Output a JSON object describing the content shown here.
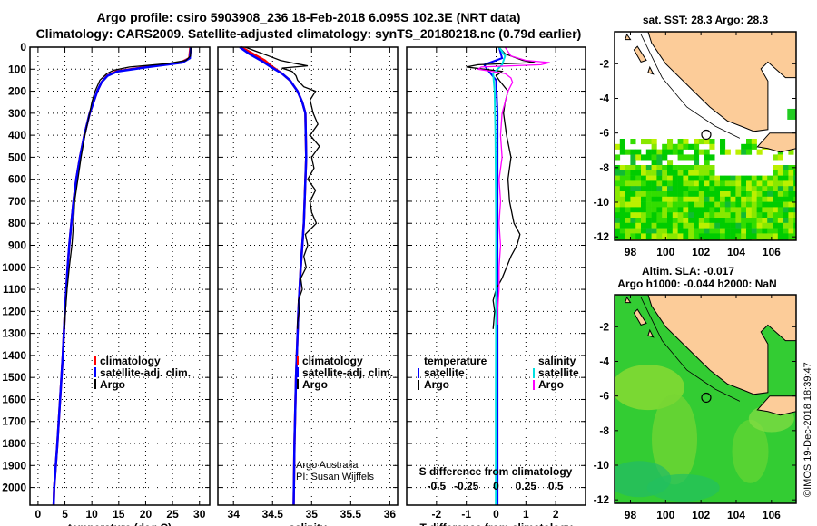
{
  "title_line1": "Argo profile: csiro 5903908_236 18-Feb-2018 6.095S 102.3E (NRT data)",
  "title_line2": "Climatology: CARS2009. Satellite-adjusted climatology: synTS_20180218.nc (0.79d earlier)",
  "credit": "©IMOS 19-Dec-2018 18:39:47",
  "colors": {
    "climatology": "#ff0000",
    "satellite": "#0000ff",
    "argo": "#000000",
    "sal_satellite": "#00e0e0",
    "sal_argo": "#ff00ff"
  },
  "chart_data": [
    {
      "type": "line",
      "id": "temperature",
      "xlabel": "temperature (deg C)",
      "ylabel": "depth",
      "xlim": [
        -1.5,
        31.9
      ],
      "ylim": [
        0,
        2080
      ],
      "xticks": [
        "0",
        "5",
        "10",
        "15",
        "20",
        "25",
        "30"
      ],
      "xtick_values": [
        0,
        5,
        10,
        15,
        20,
        25,
        30
      ],
      "yticks": [
        "0",
        "100",
        "200",
        "300",
        "400",
        "500",
        "600",
        "700",
        "800",
        "900",
        "1000",
        "1100",
        "1200",
        "1300",
        "1400",
        "1500",
        "1600",
        "1700",
        "1800",
        "1900",
        "2000"
      ],
      "ytick_values": [
        0,
        100,
        200,
        300,
        400,
        500,
        600,
        700,
        800,
        900,
        1000,
        1100,
        1200,
        1300,
        1400,
        1500,
        1600,
        1700,
        1800,
        1900,
        2000
      ],
      "legend": [
        "climatology",
        "satellite-adj. clim.",
        "Argo"
      ],
      "series": [
        {
          "name": "climatology",
          "depth": [
            0,
            50,
            70,
            90,
            110,
            130,
            160,
            200,
            250,
            300,
            400,
            500,
            600,
            700,
            800,
            900,
            1000,
            1200,
            1400,
            1600,
            1800,
            2000,
            2080
          ],
          "values": [
            28.3,
            28.1,
            26.5,
            20,
            14.5,
            12.8,
            11.8,
            11,
            10.3,
            9.6,
            8.6,
            7.8,
            7.1,
            6.6,
            6.2,
            5.8,
            5.5,
            5,
            4.6,
            4.1,
            3.6,
            3.0,
            2.9
          ]
        },
        {
          "name": "satellite-adj. clim.",
          "depth": [
            0,
            50,
            70,
            90,
            110,
            130,
            160,
            200,
            250,
            300,
            400,
            500,
            600,
            700,
            800,
            900,
            1000,
            1200,
            1400,
            1600,
            1800,
            2000,
            2080
          ],
          "values": [
            28.4,
            28.2,
            26.8,
            20.5,
            14.8,
            12.9,
            11.8,
            11,
            10.3,
            9.6,
            8.6,
            7.8,
            7.1,
            6.6,
            6.2,
            5.8,
            5.5,
            5,
            4.6,
            4.1,
            3.6,
            3.0,
            2.9
          ]
        },
        {
          "name": "Argo",
          "depth": [
            0,
            40,
            60,
            75,
            90,
            105,
            120,
            150,
            200,
            250,
            300,
            400,
            500,
            600,
            700,
            800,
            900,
            1000,
            1100,
            1200,
            1280
          ],
          "values": [
            28.4,
            28.3,
            27.5,
            24,
            17,
            14,
            12.8,
            11.5,
            10.6,
            10,
            9.6,
            8.7,
            8.0,
            7.4,
            6.8,
            6.6,
            6.3,
            5.8,
            5.4,
            5.1,
            4.9
          ]
        }
      ]
    },
    {
      "type": "line",
      "id": "salinity",
      "xlabel": "salinity",
      "xlim": [
        33.8,
        36.1
      ],
      "ylim": [
        0,
        2080
      ],
      "xticks": [
        "34",
        "34.5",
        "35",
        "35.5",
        "36"
      ],
      "xtick_values": [
        34,
        34.5,
        35,
        35.5,
        36
      ],
      "legend": [
        "climatology",
        "satellite-adj. clim.",
        "Argo"
      ],
      "annotation": [
        "Argo Australia",
        "PI: Susan Wijffels"
      ],
      "series": [
        {
          "name": "climatology",
          "depth": [
            0,
            30,
            60,
            90,
            120,
            150,
            200,
            250,
            300,
            500,
            800,
            1000,
            1200,
            1500,
            1800,
            2080
          ],
          "values": [
            34.1,
            34.25,
            34.4,
            34.5,
            34.62,
            34.72,
            34.82,
            34.88,
            34.92,
            34.93,
            34.9,
            34.86,
            34.83,
            34.8,
            34.78,
            34.77
          ]
        },
        {
          "name": "satellite-adj. clim.",
          "depth": [
            0,
            30,
            60,
            90,
            120,
            150,
            200,
            250,
            300,
            500,
            800,
            1000,
            1200,
            1500,
            1800,
            2080
          ],
          "values": [
            34.08,
            34.2,
            34.35,
            34.48,
            34.62,
            34.72,
            34.82,
            34.88,
            34.92,
            34.93,
            34.9,
            34.86,
            34.83,
            34.8,
            34.78,
            34.77
          ]
        },
        {
          "name": "Argo",
          "depth": [
            0,
            20,
            40,
            60,
            75,
            85,
            95,
            110,
            130,
            150,
            180,
            200,
            240,
            300,
            350,
            400,
            450,
            500,
            550,
            600,
            650,
            700,
            750,
            800,
            850,
            900,
            950,
            1000,
            1050,
            1100,
            1150,
            1200,
            1250,
            1280
          ],
          "values": [
            34.15,
            34.3,
            34.45,
            34.6,
            34.8,
            34.95,
            34.62,
            34.75,
            34.8,
            34.82,
            34.9,
            35.05,
            34.98,
            35.02,
            35.08,
            34.98,
            35.1,
            35.0,
            35.03,
            34.95,
            35.05,
            34.98,
            35.0,
            35.06,
            34.92,
            34.95,
            34.9,
            34.93,
            34.86,
            34.88,
            34.83,
            34.84,
            34.82,
            34.82
          ]
        }
      ]
    },
    {
      "type": "line",
      "id": "difference",
      "xlabel": "T difference from climatology",
      "xlim": [
        -3,
        3
      ],
      "ylim": [
        0,
        2080
      ],
      "xticks": [
        "-2",
        "-1",
        "0",
        "1",
        "2"
      ],
      "xtick_values": [
        -2,
        -1,
        0,
        1,
        2
      ],
      "top_axis_label": "S difference from climatology",
      "top_xticks": [
        "-0.5",
        "-0.25",
        "0",
        "0.25",
        "0.5"
      ],
      "legend_temperature": {
        "heading": "temperature",
        "items": [
          "satellite",
          "Argo"
        ]
      },
      "legend_salinity": {
        "heading": "salinity",
        "items": [
          "satellite",
          "Argo"
        ]
      },
      "series": [
        {
          "name": "T satellite",
          "depth": [
            0,
            50,
            80,
            100,
            150,
            300,
            600,
            1000,
            1500,
            2080
          ],
          "values": [
            0.1,
            0.2,
            -0.4,
            -0.3,
            0.0,
            0.05,
            0.05,
            0.05,
            0.05,
            0.05
          ]
        },
        {
          "name": "T Argo",
          "depth": [
            0,
            30,
            60,
            70,
            80,
            90,
            100,
            110,
            130,
            150,
            200,
            250,
            300,
            400,
            500,
            600,
            700,
            800,
            850,
            900,
            950,
            1000,
            1050,
            1100,
            1150,
            1200,
            1280
          ],
          "values": [
            0.1,
            0.3,
            0.9,
            1.3,
            -0.6,
            -1.0,
            -0.4,
            0.2,
            0.0,
            0.1,
            0.4,
            0.3,
            0.25,
            0.35,
            0.5,
            0.4,
            0.45,
            0.6,
            0.8,
            0.7,
            0.5,
            0.35,
            0.2,
            0.0,
            -0.1,
            -0.05,
            -0.1
          ]
        },
        {
          "name": "S satellite",
          "depth": [
            0,
            40,
            80,
            120,
            200,
            400,
            800,
            1200,
            1600,
            2080
          ],
          "values": [
            0.1,
            0.3,
            0.2,
            -0.1,
            -0.05,
            -0.02,
            0.0,
            0.0,
            -0.01,
            -0.01
          ]
        },
        {
          "name": "S Argo",
          "depth": [
            0,
            40,
            60,
            70,
            80,
            90,
            100,
            120,
            140,
            160,
            200,
            250,
            300,
            400,
            500,
            600,
            700,
            800,
            900,
            1000,
            1100,
            1200,
            1260
          ],
          "values": [
            0.3,
            0.5,
            1.0,
            1.8,
            1.5,
            -0.5,
            -0.6,
            0.3,
            0.5,
            0.55,
            0.4,
            0.3,
            0.2,
            0.15,
            0.2,
            0.1,
            0.15,
            0.1,
            0.15,
            0.1,
            0.1,
            0.05,
            0.05
          ]
        }
      ]
    },
    {
      "type": "heatmap",
      "id": "sst_map",
      "title": "sat. SST: 28.3 Argo: 28.3",
      "xlim": [
        97.1,
        107.4
      ],
      "ylim": [
        -12.2,
        -0.15
      ],
      "xticks": [
        "98",
        "100",
        "102",
        "104",
        "106"
      ],
      "yticks": [
        "-2",
        "-4",
        "-6",
        "-8",
        "-10",
        "-12"
      ],
      "argo_position": [
        102.3,
        -6.095
      ]
    },
    {
      "type": "heatmap",
      "id": "sla_map",
      "title_line1": "Altim. SLA: -0.017",
      "title_line2": "Argo h1000: -0.044 h2000: NaN",
      "xlim": [
        97.1,
        107.4
      ],
      "ylim": [
        -12.2,
        -0.15
      ],
      "xticks": [
        "98",
        "100",
        "102",
        "104",
        "106"
      ],
      "yticks": [
        "-2",
        "-4",
        "-6",
        "-8",
        "-10",
        "-12"
      ],
      "argo_position": [
        102.3,
        -6.095
      ]
    }
  ]
}
